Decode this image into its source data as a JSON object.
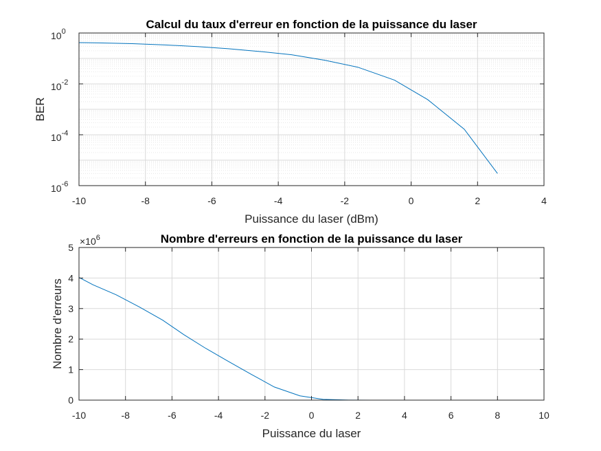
{
  "chart_data": [
    {
      "type": "line",
      "title": "Calcul du taux d'erreur en fonction de la puissance du laser",
      "xlabel": "Puissance du laser (dBm)",
      "ylabel": "BER",
      "xlim": [
        -10,
        4
      ],
      "ylim": [
        1e-06,
        1
      ],
      "yscale": "log",
      "grid": "major+minor",
      "xticks": [
        "-10",
        "-8",
        "-6",
        "-4",
        "-2",
        "0",
        "2",
        "4"
      ],
      "yticks": [
        {
          "base": "10",
          "exp": "-6"
        },
        {
          "base": "10",
          "exp": "-4"
        },
        {
          "base": "10",
          "exp": "-2"
        },
        {
          "base": "10",
          "exp": "0"
        }
      ],
      "series": [
        {
          "color": "#0072BD",
          "x": [
            -10,
            -9.4,
            -8.4,
            -7.4,
            -6.4,
            -5.5,
            -4.6,
            -3.6,
            -2.6,
            -1.6,
            -0.5,
            0.5,
            1.6,
            2.6
          ],
          "y": [
            0.42,
            0.41,
            0.38,
            0.34,
            0.29,
            0.24,
            0.19,
            0.14,
            0.085,
            0.045,
            0.014,
            0.0024,
            0.000165,
            3e-06
          ]
        }
      ]
    },
    {
      "type": "line",
      "title": "Nombre d'erreurs en fonction de la puissance du laser",
      "xlabel": "Puissance du laser",
      "ylabel": "Nombre d'erreurs",
      "xlim": [
        -10,
        10
      ],
      "ylim": [
        0,
        5
      ],
      "y_multiplier": {
        "base": "×10",
        "exp": "6"
      },
      "grid": "major",
      "xticks": [
        "-10",
        "-8",
        "-6",
        "-4",
        "-2",
        "0",
        "2",
        "4",
        "6",
        "8",
        "10"
      ],
      "yticks": [
        "0",
        "1",
        "2",
        "3",
        "4",
        "5"
      ],
      "series": [
        {
          "color": "#0072BD",
          "x": [
            -10,
            -9.4,
            -8.4,
            -7.4,
            -6.4,
            -5.5,
            -4.6,
            -3.6,
            -2.6,
            -1.6,
            -0.5,
            0.5,
            1.6,
            2.6,
            4,
            6,
            8,
            10
          ],
          "y": [
            4.02,
            3.78,
            3.45,
            3.05,
            2.62,
            2.15,
            1.72,
            1.28,
            0.85,
            0.43,
            0.14,
            0.025,
            0.002,
            0,
            0,
            0,
            0,
            0
          ]
        }
      ]
    }
  ]
}
